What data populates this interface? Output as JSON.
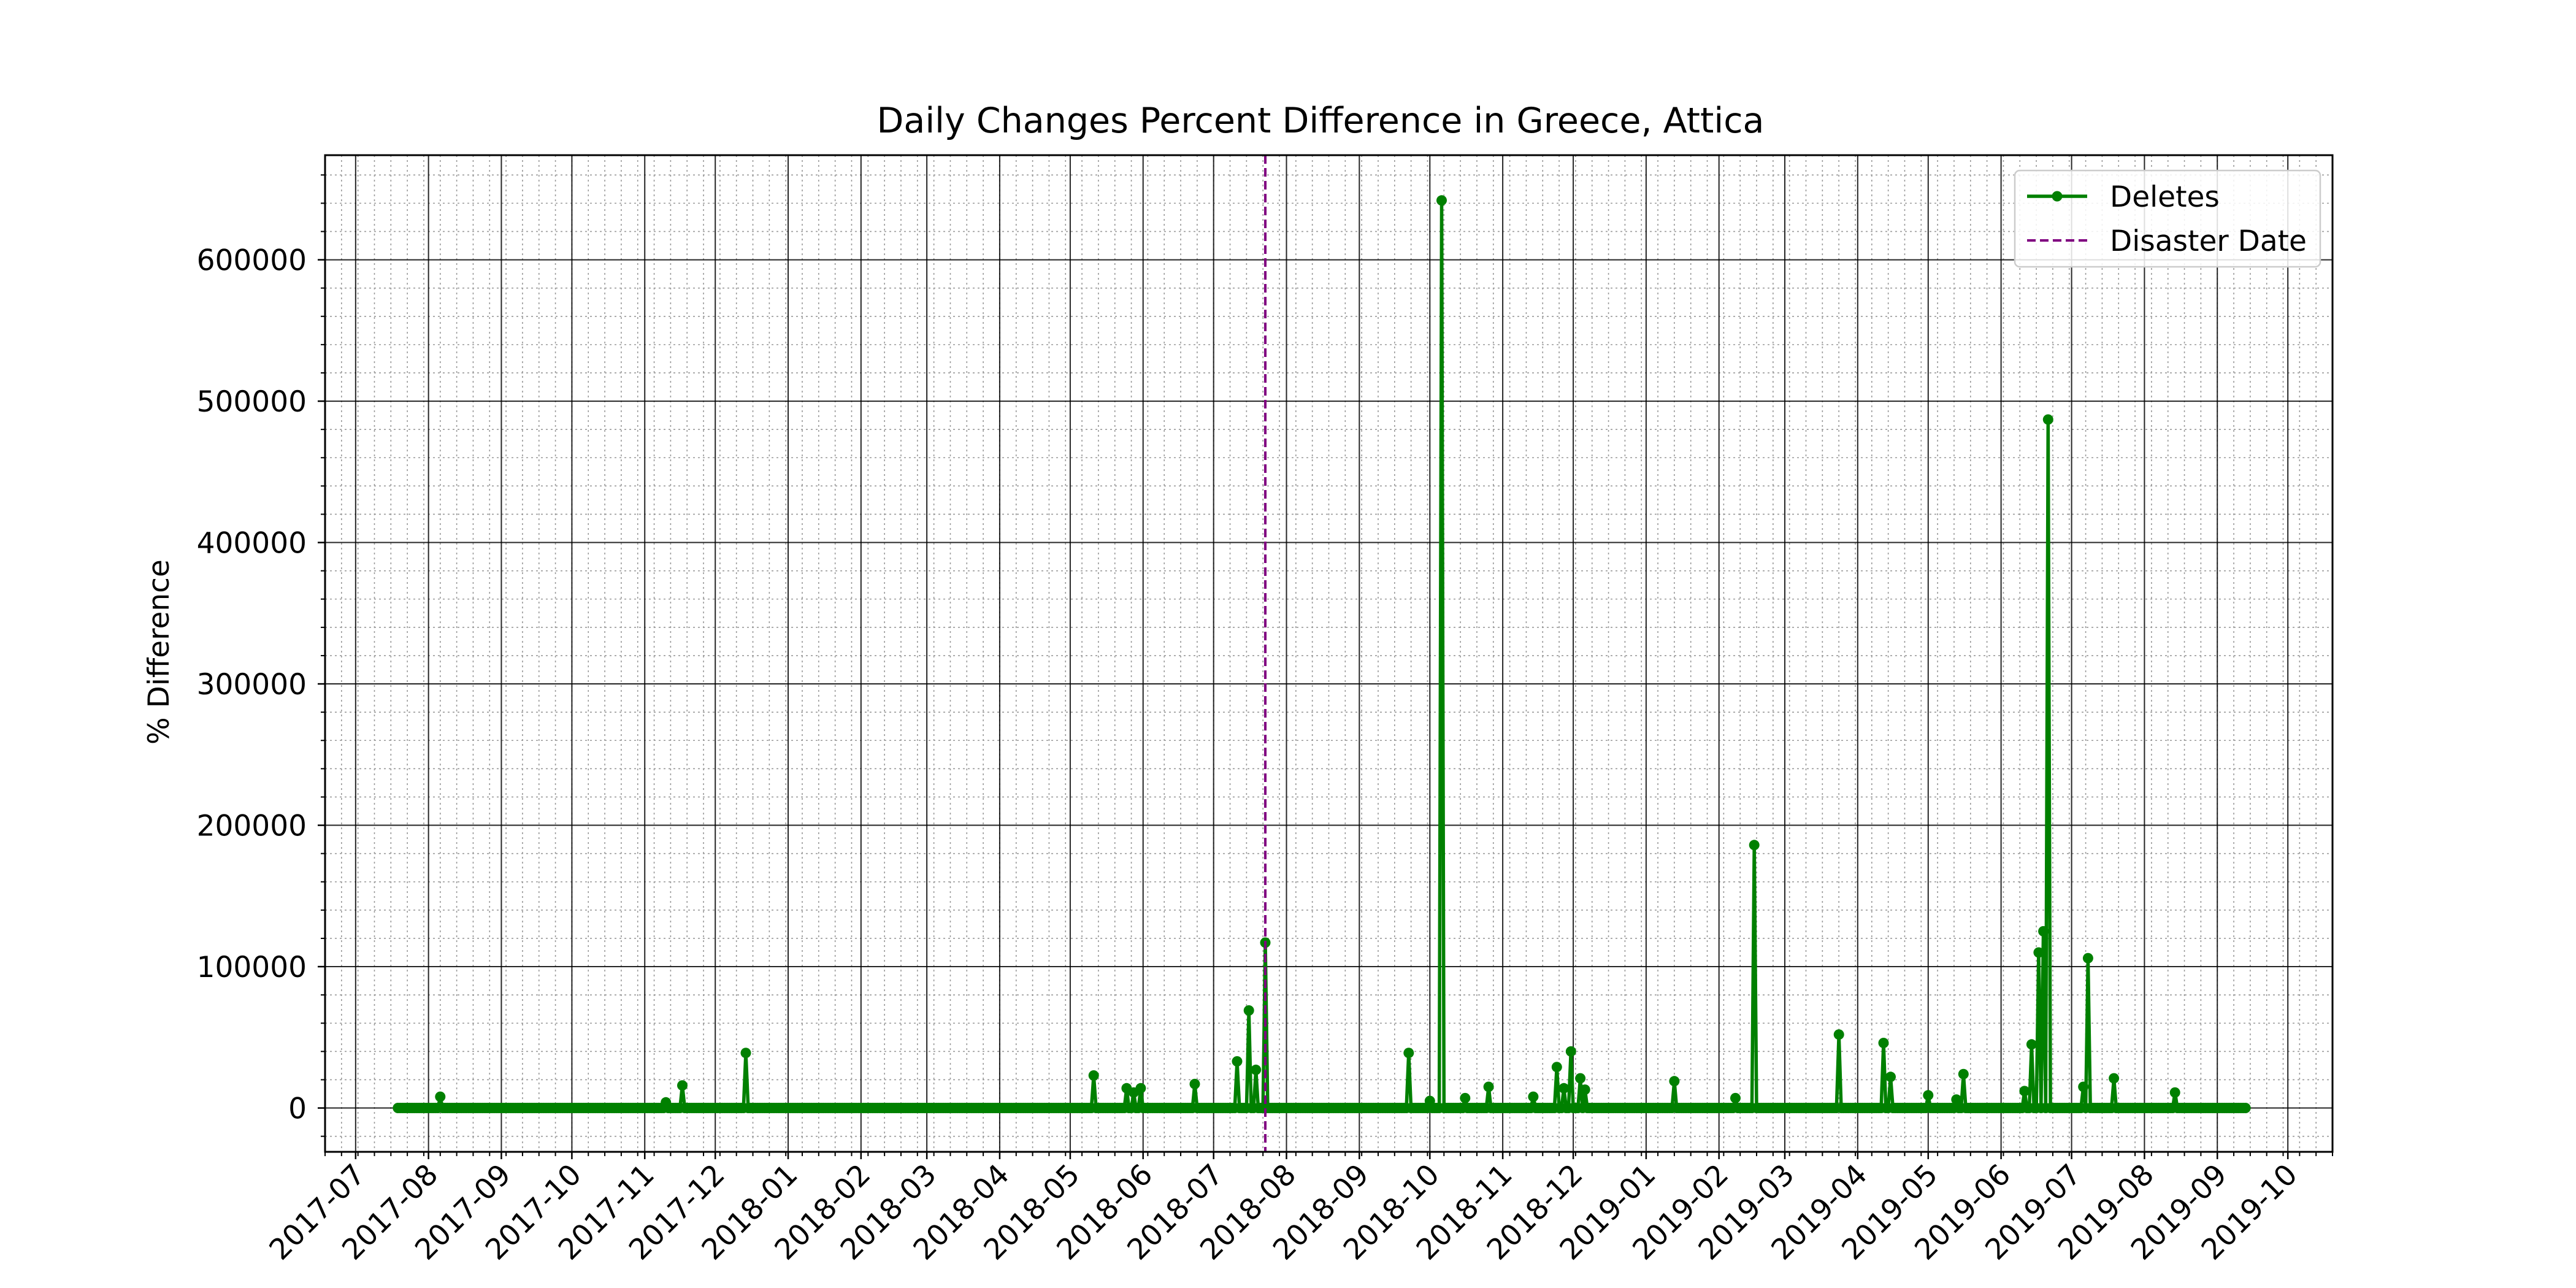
{
  "chart_data": {
    "type": "line",
    "title": "Daily Changes Percent Difference in Greece, Attica",
    "xlabel": "",
    "ylabel": "% Difference",
    "x_tick_labels": [
      "2017-07",
      "2017-08",
      "2017-09",
      "2017-10",
      "2017-11",
      "2017-12",
      "2018-01",
      "2018-02",
      "2018-03",
      "2018-04",
      "2018-05",
      "2018-06",
      "2018-07",
      "2018-08",
      "2018-09",
      "2018-10",
      "2018-11",
      "2018-12",
      "2019-01",
      "2019-02",
      "2019-03",
      "2019-04",
      "2019-05",
      "2019-06",
      "2019-07",
      "2019-08",
      "2019-09",
      "2019-10"
    ],
    "y_tick_labels": [
      "0",
      "100000",
      "200000",
      "300000",
      "400000",
      "500000",
      "600000"
    ],
    "xlim": [
      "2017-06-18",
      "2019-10-20"
    ],
    "ylim": [
      -31000,
      674000
    ],
    "grid": "major and minor",
    "legend_position": "top-right",
    "series": [
      {
        "name": "Deletes",
        "color": "#008000",
        "marker": "circle",
        "x_start": "2017-07-19",
        "x_end": "2019-09-13",
        "baseline": 0,
        "spikes": [
          {
            "x": "2017-08-06",
            "y": 8000
          },
          {
            "x": "2017-11-10",
            "y": 4000
          },
          {
            "x": "2017-11-17",
            "y": 16000
          },
          {
            "x": "2017-12-14",
            "y": 39000
          },
          {
            "x": "2018-05-11",
            "y": 23000
          },
          {
            "x": "2018-05-25",
            "y": 14000
          },
          {
            "x": "2018-05-28",
            "y": 11000
          },
          {
            "x": "2018-05-31",
            "y": 14000
          },
          {
            "x": "2018-06-23",
            "y": 17000
          },
          {
            "x": "2018-07-11",
            "y": 33000
          },
          {
            "x": "2018-07-16",
            "y": 69000
          },
          {
            "x": "2018-07-19",
            "y": 27000
          },
          {
            "x": "2018-07-23",
            "y": 117000
          },
          {
            "x": "2018-09-22",
            "y": 39000
          },
          {
            "x": "2018-10-01",
            "y": 5000
          },
          {
            "x": "2018-10-06",
            "y": 642000
          },
          {
            "x": "2018-10-16",
            "y": 7000
          },
          {
            "x": "2018-10-26",
            "y": 15000
          },
          {
            "x": "2018-11-14",
            "y": 8000
          },
          {
            "x": "2018-11-24",
            "y": 29000
          },
          {
            "x": "2018-11-27",
            "y": 14000
          },
          {
            "x": "2018-11-30",
            "y": 40000
          },
          {
            "x": "2018-12-04",
            "y": 21000
          },
          {
            "x": "2018-12-06",
            "y": 13000
          },
          {
            "x": "2019-01-13",
            "y": 19000
          },
          {
            "x": "2019-02-08",
            "y": 7000
          },
          {
            "x": "2019-02-16",
            "y": 186000
          },
          {
            "x": "2019-03-24",
            "y": 52000
          },
          {
            "x": "2019-04-12",
            "y": 46000
          },
          {
            "x": "2019-04-15",
            "y": 22000
          },
          {
            "x": "2019-05-01",
            "y": 9000
          },
          {
            "x": "2019-05-13",
            "y": 6000
          },
          {
            "x": "2019-05-16",
            "y": 24000
          },
          {
            "x": "2019-06-11",
            "y": 12000
          },
          {
            "x": "2019-06-14",
            "y": 45000
          },
          {
            "x": "2019-06-17",
            "y": 110000
          },
          {
            "x": "2019-06-19",
            "y": 125000
          },
          {
            "x": "2019-06-21",
            "y": 487000
          },
          {
            "x": "2019-07-06",
            "y": 15000
          },
          {
            "x": "2019-07-08",
            "y": 106000
          },
          {
            "x": "2019-07-19",
            "y": 21000
          },
          {
            "x": "2019-08-14",
            "y": 11000
          }
        ]
      },
      {
        "name": "Disaster Date",
        "color": "#800080",
        "style": "dashed",
        "x": "2018-07-23"
      }
    ]
  }
}
